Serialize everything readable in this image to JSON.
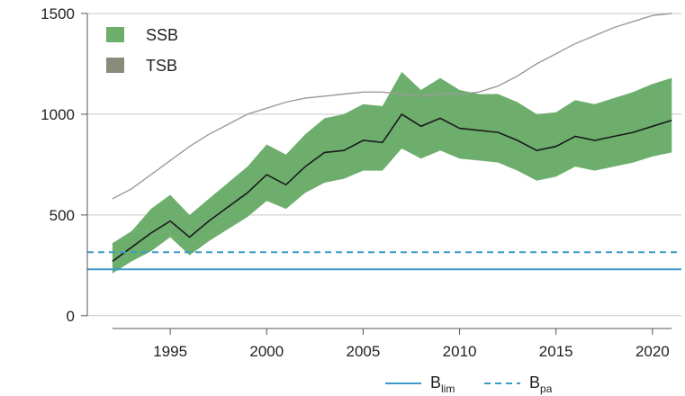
{
  "chart_data": {
    "type": "area",
    "x_ticks": [
      1995,
      2000,
      2005,
      2010,
      2015,
      2020
    ],
    "y_ticks": [
      0,
      500,
      1000,
      1500
    ],
    "xlim": [
      1990.7,
      2021.5
    ],
    "ylim": [
      -50,
      1540
    ],
    "grid": "horizontal",
    "legend_top": {
      "placement": "top-left",
      "entries": [
        {
          "label": "SSB",
          "color": "#6dae6d"
        },
        {
          "label": "TSB",
          "color": "#8b8b7c"
        }
      ]
    },
    "legend_bottom": {
      "placement": "bottom-right",
      "entries": [
        {
          "label": "B",
          "subscript": "lim",
          "style": "solid",
          "color": "#3b9bc8"
        },
        {
          "label": "B",
          "subscript": "pa",
          "style": "dashed",
          "color": "#3b9bc8"
        }
      ]
    },
    "series": [
      {
        "name": "SSB",
        "style": "band with median line",
        "band_color": "#6dae6d",
        "line_color": "#1a1a1a",
        "x": [
          1992,
          1993,
          1994,
          1995,
          1996,
          1997,
          1998,
          1999,
          2000,
          2001,
          2002,
          2003,
          2004,
          2005,
          2006,
          2007,
          2008,
          2009,
          2010,
          2011,
          2012,
          2013,
          2014,
          2015,
          2016,
          2017,
          2018,
          2019,
          2020,
          2021
        ],
        "median": [
          270,
          340,
          410,
          470,
          390,
          470,
          540,
          610,
          700,
          650,
          740,
          810,
          820,
          870,
          860,
          1000,
          940,
          980,
          930,
          920,
          910,
          870,
          820,
          840,
          890,
          870,
          890,
          910,
          940,
          970
        ],
        "lower": [
          210,
          270,
          320,
          390,
          300,
          370,
          430,
          490,
          570,
          530,
          610,
          660,
          680,
          720,
          720,
          830,
          780,
          820,
          780,
          770,
          760,
          720,
          670,
          690,
          740,
          720,
          740,
          760,
          790,
          810
        ],
        "upper": [
          360,
          420,
          530,
          600,
          500,
          580,
          660,
          740,
          850,
          800,
          900,
          980,
          1000,
          1050,
          1040,
          1210,
          1120,
          1180,
          1120,
          1100,
          1100,
          1060,
          1000,
          1010,
          1070,
          1050,
          1080,
          1110,
          1150,
          1180
        ]
      },
      {
        "name": "TSB",
        "style": "line",
        "line_color": "#9a9a9a",
        "x": [
          1992,
          1993,
          1994,
          1995,
          1996,
          1997,
          1998,
          1999,
          2000,
          2001,
          2002,
          2003,
          2004,
          2005,
          2006,
          2007,
          2008,
          2009,
          2010,
          2011,
          2012,
          2013,
          2014,
          2015,
          2016,
          2017,
          2018,
          2019,
          2020,
          2021
        ],
        "values": [
          580,
          630,
          700,
          770,
          840,
          900,
          950,
          1000,
          1030,
          1060,
          1080,
          1090,
          1100,
          1110,
          1110,
          1100,
          1090,
          1100,
          1100,
          1110,
          1140,
          1190,
          1250,
          1300,
          1350,
          1390,
          1430,
          1460,
          1490,
          1500
        ]
      }
    ],
    "reference_lines": [
      {
        "label": "Blim",
        "value": 230,
        "style": "solid",
        "color": "#3b9bc8"
      },
      {
        "label": "Bpa",
        "value": 315,
        "style": "dashed",
        "color": "#3b9bc8"
      }
    ]
  }
}
